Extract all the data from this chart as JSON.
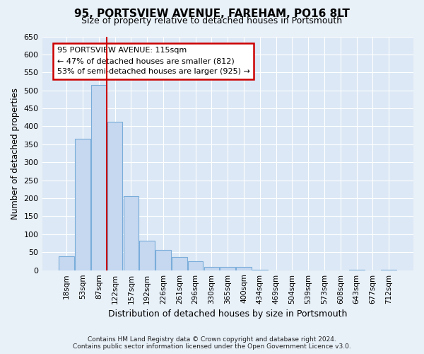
{
  "title": "95, PORTSVIEW AVENUE, FAREHAM, PO16 8LT",
  "subtitle": "Size of property relative to detached houses in Portsmouth",
  "xlabel": "Distribution of detached houses by size in Portsmouth",
  "ylabel": "Number of detached properties",
  "bar_color": "#c5d8f0",
  "bar_edge_color": "#7aadda",
  "bg_color": "#dce8f5",
  "fig_color": "#e8f0f8",
  "grid_color": "#ffffff",
  "categories": [
    "18sqm",
    "53sqm",
    "87sqm",
    "122sqm",
    "157sqm",
    "192sqm",
    "226sqm",
    "261sqm",
    "296sqm",
    "330sqm",
    "365sqm",
    "400sqm",
    "434sqm",
    "469sqm",
    "504sqm",
    "539sqm",
    "573sqm",
    "608sqm",
    "643sqm",
    "677sqm",
    "712sqm"
  ],
  "values": [
    38,
    365,
    515,
    412,
    207,
    83,
    57,
    37,
    24,
    10,
    10,
    10,
    2,
    0,
    0,
    0,
    0,
    0,
    2,
    0,
    2
  ],
  "red_line_x": 2.5,
  "annotation_text": "95 PORTSVIEW AVENUE: 115sqm\n← 47% of detached houses are smaller (812)\n53% of semi-detached houses are larger (925) →",
  "annotation_box_color": "#ffffff",
  "annotation_border_color": "#cc0000",
  "red_line_color": "#cc0000",
  "ylim": [
    0,
    650
  ],
  "yticks": [
    0,
    50,
    100,
    150,
    200,
    250,
    300,
    350,
    400,
    450,
    500,
    550,
    600,
    650
  ],
  "footer1": "Contains HM Land Registry data © Crown copyright and database right 2024.",
  "footer2": "Contains public sector information licensed under the Open Government Licence v3.0."
}
